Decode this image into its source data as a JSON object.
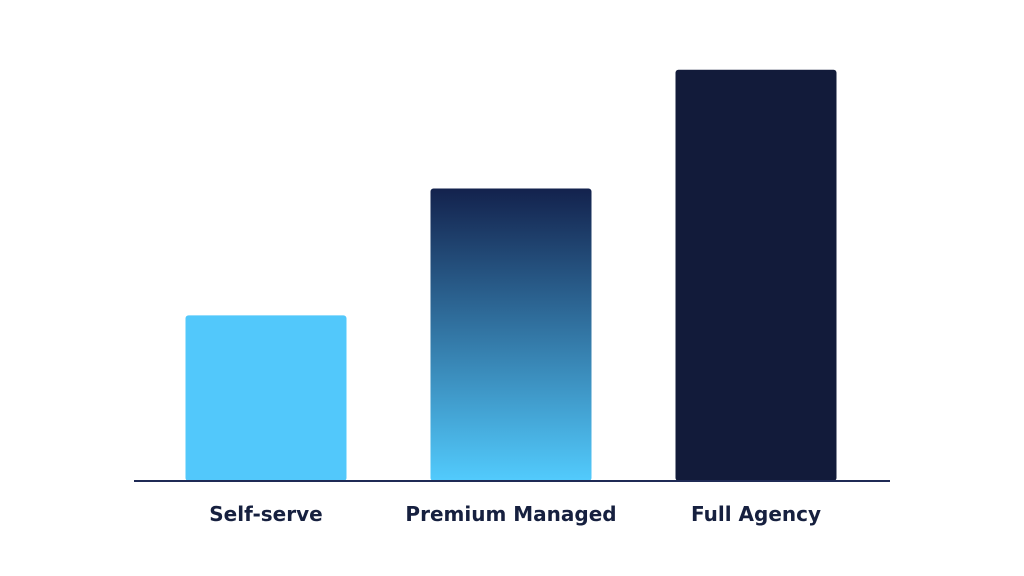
{
  "chart_data": {
    "type": "bar",
    "categories": [
      "Self-serve",
      "Premium Managed",
      "Full Agency"
    ],
    "values": [
      30,
      53,
      74.5
    ],
    "title": "",
    "xlabel": "",
    "ylabel": "",
    "ylim": [
      0,
      75
    ],
    "grid": false,
    "legend": "none",
    "bar_styles": [
      {
        "fill": "#52c8fb"
      },
      {
        "gradient_top": "#13224d",
        "gradient_bottom": "#52cbfd"
      },
      {
        "fill": "#121b3a"
      }
    ],
    "axis_color": "#1f2a55",
    "label_color": "#16203f"
  }
}
